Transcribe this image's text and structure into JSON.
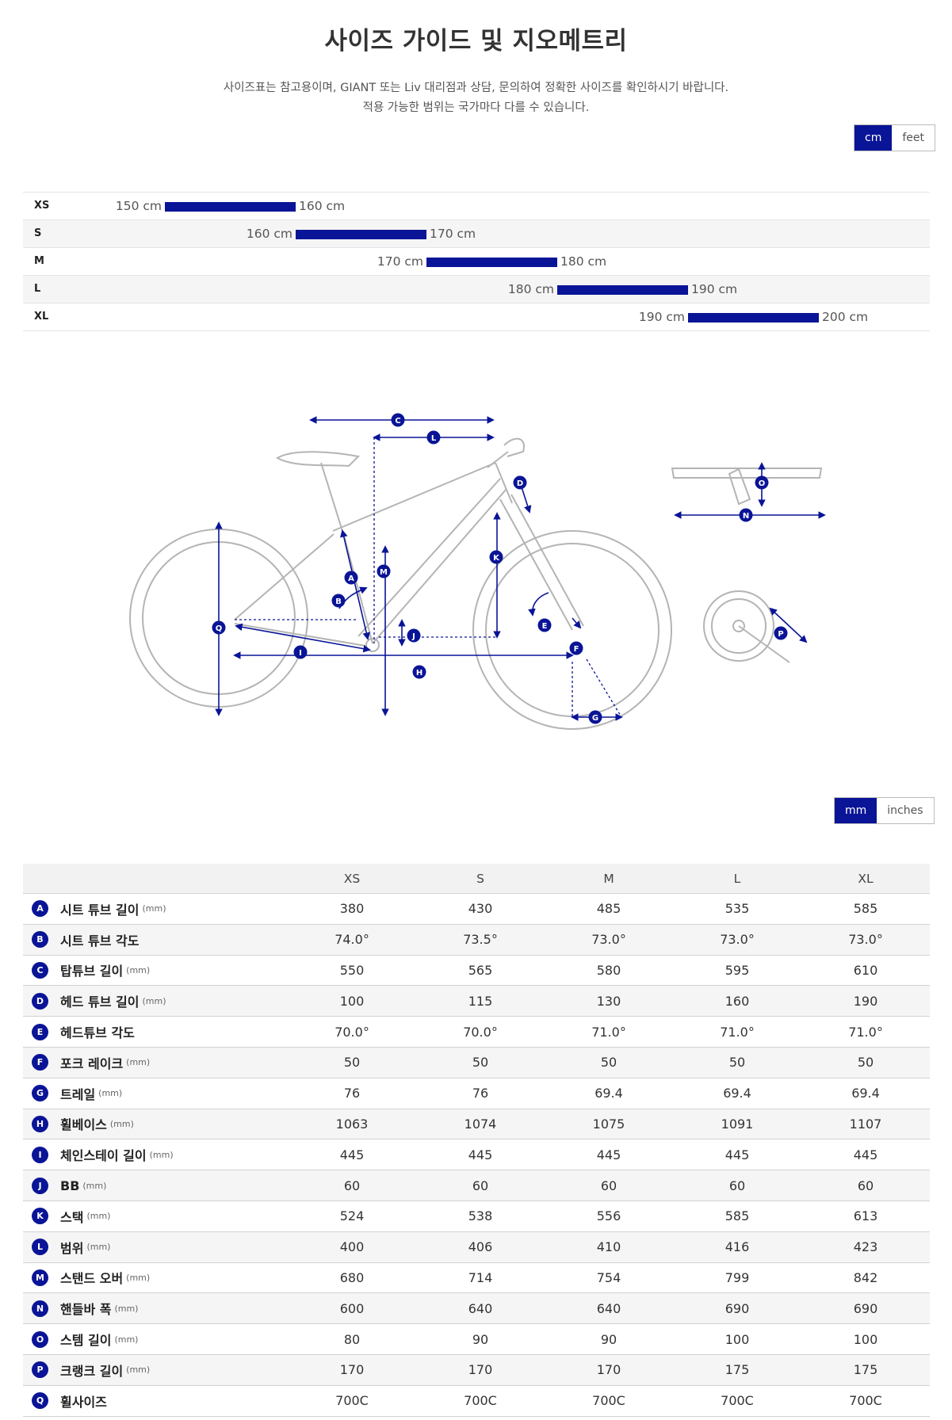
{
  "header": {
    "title": "사이즈 가이드 및 지오메트리",
    "subtitle_line1": "사이즈표는 참고용이며, GIANT 또는 Liv 대리점과 상담, 문의하여 정확한 사이즈를 확인하시기 바랍니다.",
    "subtitle_line2": "적용 가능한 범위는 국가마다 다를 수 있습니다."
  },
  "height_units": {
    "options": [
      "cm",
      "feet"
    ],
    "selected": "cm"
  },
  "geometry_units": {
    "options": [
      "mm",
      "inches"
    ],
    "selected": "mm"
  },
  "chart_data": {
    "type": "bar",
    "categories": [
      "XS",
      "S",
      "M",
      "L",
      "XL"
    ],
    "ranges_cm": [
      [
        150,
        160
      ],
      [
        160,
        170
      ],
      [
        170,
        180
      ],
      [
        180,
        190
      ],
      [
        190,
        200
      ]
    ],
    "labels": [
      [
        "150 cm",
        "160 cm"
      ],
      [
        "160 cm",
        "170 cm"
      ],
      [
        "170 cm",
        "180 cm"
      ],
      [
        "180 cm",
        "190 cm"
      ],
      [
        "190 cm",
        "200 cm"
      ]
    ]
  },
  "size_rows": [
    {
      "size": "XS",
      "min_label": "150 cm",
      "max_label": "160 cm"
    },
    {
      "size": "S",
      "min_label": "160 cm",
      "max_label": "170 cm"
    },
    {
      "size": "M",
      "min_label": "170 cm",
      "max_label": "180 cm"
    },
    {
      "size": "L",
      "min_label": "180 cm",
      "max_label": "190 cm"
    },
    {
      "size": "XL",
      "min_label": "190 cm",
      "max_label": "200 cm"
    }
  ],
  "diagram_letters": [
    "A",
    "B",
    "C",
    "D",
    "E",
    "F",
    "G",
    "H",
    "I",
    "J",
    "K",
    "L",
    "M",
    "N",
    "O",
    "P",
    "Q"
  ],
  "geometry": {
    "columns": [
      "XS",
      "S",
      "M",
      "L",
      "XL"
    ],
    "rows": [
      {
        "letter": "A",
        "name": "시트 튜브 길이",
        "unit": "(mm)",
        "values": [
          "380",
          "430",
          "485",
          "535",
          "585"
        ]
      },
      {
        "letter": "B",
        "name": "시트 튜브 각도",
        "unit": "",
        "values": [
          "74.0°",
          "73.5°",
          "73.0°",
          "73.0°",
          "73.0°"
        ]
      },
      {
        "letter": "C",
        "name": "탑튜브 길이",
        "unit": "(mm)",
        "values": [
          "550",
          "565",
          "580",
          "595",
          "610"
        ]
      },
      {
        "letter": "D",
        "name": "헤드 튜브 길이",
        "unit": "(mm)",
        "values": [
          "100",
          "115",
          "130",
          "160",
          "190"
        ]
      },
      {
        "letter": "E",
        "name": "헤드튜브 각도",
        "unit": "",
        "values": [
          "70.0°",
          "70.0°",
          "71.0°",
          "71.0°",
          "71.0°"
        ]
      },
      {
        "letter": "F",
        "name": "포크 레이크",
        "unit": "(mm)",
        "values": [
          "50",
          "50",
          "50",
          "50",
          "50"
        ]
      },
      {
        "letter": "G",
        "name": "트레일",
        "unit": "(mm)",
        "values": [
          "76",
          "76",
          "69.4",
          "69.4",
          "69.4"
        ]
      },
      {
        "letter": "H",
        "name": "휠베이스",
        "unit": "(mm)",
        "values": [
          "1063",
          "1074",
          "1075",
          "1091",
          "1107"
        ]
      },
      {
        "letter": "I",
        "name": "체인스테이 길이",
        "unit": "(mm)",
        "values": [
          "445",
          "445",
          "445",
          "445",
          "445"
        ]
      },
      {
        "letter": "J",
        "name": "BB",
        "unit": "(mm)",
        "values": [
          "60",
          "60",
          "60",
          "60",
          "60"
        ]
      },
      {
        "letter": "K",
        "name": "스택",
        "unit": "(mm)",
        "values": [
          "524",
          "538",
          "556",
          "585",
          "613"
        ]
      },
      {
        "letter": "L",
        "name": "범위",
        "unit": "(mm)",
        "values": [
          "400",
          "406",
          "410",
          "416",
          "423"
        ]
      },
      {
        "letter": "M",
        "name": "스탠드 오버",
        "unit": "(mm)",
        "values": [
          "680",
          "714",
          "754",
          "799",
          "842"
        ]
      },
      {
        "letter": "N",
        "name": "핸들바 폭",
        "unit": "(mm)",
        "values": [
          "600",
          "640",
          "640",
          "690",
          "690"
        ]
      },
      {
        "letter": "O",
        "name": "스템 길이",
        "unit": "(mm)",
        "values": [
          "80",
          "90",
          "90",
          "100",
          "100"
        ]
      },
      {
        "letter": "P",
        "name": "크랭크 길이",
        "unit": "(mm)",
        "values": [
          "170",
          "170",
          "170",
          "175",
          "175"
        ]
      },
      {
        "letter": "Q",
        "name": "휠사이즈",
        "unit": "",
        "values": [
          "700C",
          "700C",
          "700C",
          "700C",
          "700C"
        ]
      }
    ]
  },
  "colors": {
    "accent": "#0a1496",
    "frame_stroke": "#b4b4b4",
    "row_alt": "#f5f5f5"
  }
}
